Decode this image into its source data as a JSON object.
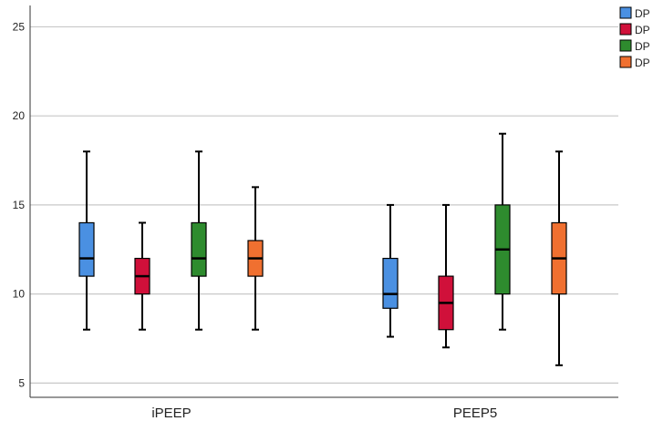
{
  "chart_data": {
    "type": "boxplot",
    "categories": [
      "iPEEP",
      "PEEP5"
    ],
    "yticks": [
      5,
      10,
      15,
      20,
      25
    ],
    "ylim": [
      4.2,
      26.2
    ],
    "grid": true,
    "legend_position": "top-right",
    "series": [
      {
        "name": "DP",
        "color": "#4a90e2",
        "boxes": [
          {
            "min": 8,
            "q1": 11,
            "median": 12,
            "q3": 14,
            "max": 18
          },
          {
            "min": 7.6,
            "q1": 9.2,
            "median": 10,
            "q3": 12,
            "max": 15
          }
        ]
      },
      {
        "name": "DP",
        "color": "#d0103a",
        "boxes": [
          {
            "min": 8,
            "q1": 10,
            "median": 11,
            "q3": 12,
            "max": 14
          },
          {
            "min": 7,
            "q1": 8,
            "median": 9.5,
            "q3": 11,
            "max": 15
          }
        ]
      },
      {
        "name": "DP",
        "color": "#2e8b2e",
        "boxes": [
          {
            "min": 8,
            "q1": 11,
            "median": 12,
            "q3": 14,
            "max": 18
          },
          {
            "min": 8,
            "q1": 10,
            "median": 12.5,
            "q3": 15,
            "max": 19
          }
        ]
      },
      {
        "name": "DP",
        "color": "#f07030",
        "boxes": [
          {
            "min": 8,
            "q1": 11,
            "median": 12,
            "q3": 13,
            "max": 16
          },
          {
            "min": 6,
            "q1": 10,
            "median": 12,
            "q3": 14,
            "max": 18
          }
        ]
      }
    ]
  }
}
